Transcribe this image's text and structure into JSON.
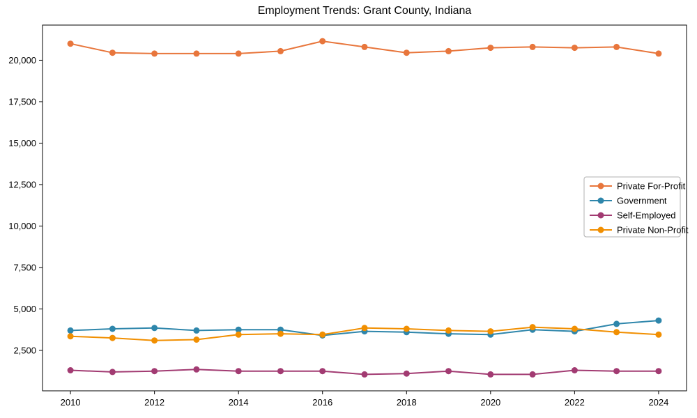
{
  "title": "Employment Trends: Grant County, Indiana",
  "chart_data": {
    "type": "line",
    "title": "Employment Trends: Grant County, Indiana",
    "xlabel": "",
    "ylabel": "",
    "grid": false,
    "marker": "circle",
    "legend_position": "center-right",
    "x": [
      2010,
      2011,
      2012,
      2013,
      2014,
      2015,
      2016,
      2017,
      2018,
      2019,
      2020,
      2021,
      2022,
      2023,
      2024
    ],
    "series": [
      {
        "name": "Private For-Profit",
        "color": "#E8763C",
        "values": [
          21000,
          20450,
          20400,
          20400,
          20400,
          20550,
          21150,
          20800,
          20450,
          20550,
          20750,
          20800,
          20750,
          20800,
          20400
        ]
      },
      {
        "name": "Government",
        "color": "#2E86AB",
        "values": [
          3700,
          3800,
          3850,
          3700,
          3750,
          3750,
          3400,
          3650,
          3600,
          3500,
          3450,
          3750,
          3650,
          4100,
          4300
        ]
      },
      {
        "name": "Self-Employed",
        "color": "#A23B72",
        "values": [
          1300,
          1200,
          1250,
          1350,
          1250,
          1250,
          1250,
          1050,
          1100,
          1250,
          1050,
          1050,
          1300,
          1250,
          1250
        ]
      },
      {
        "name": "Private Non-Profit",
        "color": "#F18F01",
        "values": [
          3350,
          3250,
          3100,
          3150,
          3450,
          3500,
          3450,
          3850,
          3800,
          3700,
          3650,
          3900,
          3800,
          3600,
          3450
        ]
      }
    ],
    "xticks": {
      "values": [
        2010,
        2012,
        2014,
        2016,
        2018,
        2020,
        2022,
        2024
      ],
      "labels": [
        "2010",
        "2012",
        "2014",
        "2016",
        "2018",
        "2020",
        "2022",
        "2024"
      ]
    },
    "yticks": {
      "values": [
        2500,
        5000,
        7500,
        10000,
        12500,
        15000,
        17500,
        20000
      ],
      "labels": [
        "2,500",
        "5,000",
        "7,500",
        "10,000",
        "12,500",
        "15,000",
        "17,500",
        "20,000"
      ]
    },
    "ylim": [
      60,
      22120
    ],
    "xlim": [
      2009.335,
      2024.665
    ],
    "axis_color": "#000000",
    "legend_border_color": "#b0b0b0"
  }
}
